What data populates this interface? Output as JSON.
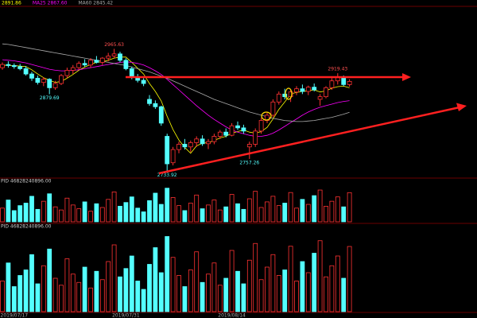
{
  "chart_data": {
    "type": "candlestick",
    "header": [
      {
        "text": "2891.86",
        "color": "#ffff00"
      },
      {
        "text": "MA25 2867.60",
        "color": "#ff00ff"
      },
      {
        "text": "MA60 2845.42",
        "color": "#aaaaaa"
      }
    ],
    "categories": [
      null,
      null,
      "2019/07/17",
      null,
      null,
      null,
      null,
      null,
      null,
      null,
      null,
      null,
      null,
      null,
      null,
      null,
      null,
      null,
      null,
      null,
      null,
      "2019/07/31",
      null,
      null,
      null,
      null,
      null,
      null,
      null,
      null,
      null,
      null,
      null,
      null,
      null,
      null,
      null,
      null,
      null,
      "2019/08/14",
      null,
      null,
      null,
      null,
      null,
      null,
      null,
      null,
      null,
      null,
      null,
      null,
      null,
      null,
      null,
      null,
      null,
      null,
      null,
      null
    ],
    "open": [
      2930,
      2936,
      2934,
      2932,
      2928,
      2918,
      2910,
      2902,
      2908,
      2892,
      2900,
      2915,
      2925,
      2930,
      2938,
      2935,
      2944,
      2940,
      2948,
      2952,
      2956,
      2944,
      2928,
      2912,
      2906,
      2870,
      2862,
      2856,
      2800,
      2750,
      2775,
      2785,
      2780,
      2788,
      2795,
      2786,
      2790,
      2800,
      2808,
      2802,
      2820,
      2816,
      2780,
      2785,
      2810,
      2830,
      2840,
      2865,
      2880,
      2875,
      2884,
      2890,
      2885,
      2893,
      2870,
      2875,
      2892,
      2905,
      2912,
      2898
    ],
    "high": [
      2940,
      2942,
      2938,
      2937,
      2933,
      2922,
      2915,
      2912,
      2910,
      2905,
      2918,
      2930,
      2935,
      2942,
      2946,
      2948,
      2952,
      2950,
      2958,
      2965.63,
      2960,
      2948,
      2932,
      2918,
      2910,
      2878,
      2868,
      2858,
      2805,
      2780,
      2790,
      2795,
      2792,
      2800,
      2802,
      2795,
      2805,
      2812,
      2815,
      2825,
      2828,
      2822,
      2790,
      2815,
      2835,
      2845,
      2870,
      2885,
      2890,
      2888,
      2895,
      2898,
      2896,
      2900,
      2880,
      2895,
      2910,
      2919.43,
      2915,
      2908
    ],
    "low": [
      2926,
      2930,
      2928,
      2925,
      2915,
      2905,
      2898,
      2895,
      2879.69,
      2888,
      2897,
      2910,
      2918,
      2926,
      2932,
      2930,
      2938,
      2935,
      2942,
      2948,
      2940,
      2925,
      2908,
      2902,
      2895,
      2858,
      2852,
      2820,
      2733.92,
      2745,
      2768,
      2775,
      2770,
      2780,
      2782,
      2776,
      2785,
      2795,
      2798,
      2800,
      2812,
      2805,
      2757.26,
      2780,
      2805,
      2825,
      2836,
      2860,
      2870,
      2865,
      2878,
      2880,
      2878,
      2885,
      2858,
      2872,
      2888,
      2898,
      2895,
      2894
    ],
    "close": [
      2936,
      2934,
      2932,
      2928,
      2918,
      2910,
      2902,
      2908,
      2892,
      2900,
      2915,
      2925,
      2930,
      2938,
      2935,
      2944,
      2940,
      2948,
      2952,
      2956,
      2944,
      2928,
      2912,
      2906,
      2900,
      2862,
      2856,
      2825,
      2748,
      2775,
      2785,
      2780,
      2788,
      2795,
      2786,
      2790,
      2800,
      2808,
      2802,
      2820,
      2816,
      2810,
      2785,
      2810,
      2830,
      2840,
      2865,
      2880,
      2875,
      2884,
      2890,
      2885,
      2893,
      2888,
      2875,
      2892,
      2905,
      2912,
      2898,
      2904
    ],
    "high_labels": [
      null,
      null,
      null,
      null,
      null,
      null,
      null,
      null,
      null,
      null,
      null,
      null,
      null,
      null,
      null,
      null,
      null,
      null,
      null,
      "2965.63",
      null,
      null,
      null,
      null,
      null,
      null,
      null,
      null,
      null,
      null,
      null,
      null,
      null,
      null,
      null,
      null,
      null,
      null,
      null,
      null,
      null,
      null,
      null,
      null,
      null,
      null,
      null,
      null,
      null,
      null,
      null,
      null,
      null,
      null,
      null,
      null,
      null,
      "2919.43",
      null,
      null
    ],
    "low_labels": [
      null,
      null,
      null,
      null,
      null,
      null,
      null,
      null,
      "2879.69",
      null,
      null,
      null,
      null,
      null,
      null,
      null,
      null,
      null,
      null,
      null,
      null,
      null,
      null,
      null,
      null,
      null,
      null,
      null,
      "2733.92",
      null,
      null,
      null,
      null,
      null,
      null,
      null,
      null,
      null,
      null,
      null,
      null,
      null,
      "2757.26",
      null,
      null,
      null,
      null,
      null,
      null,
      null,
      null,
      null,
      null,
      null,
      null,
      null,
      null,
      null,
      null,
      null
    ],
    "up_color": "#ff3232",
    "down_color": "#54ffff",
    "ylim": [
      2724,
      3046
    ],
    "series": [
      {
        "color": "#ffff00",
        "values": [
          2935,
          2934,
          2934,
          2933,
          2932,
          2926,
          2918,
          2911,
          2906,
          2902,
          2904,
          2910,
          2917,
          2925,
          2931,
          2936,
          2940,
          2941,
          2944,
          2948,
          2950,
          2950,
          2940,
          2929,
          2918,
          2900,
          2885,
          2867,
          2838,
          2813,
          2793,
          2779,
          2768,
          2782,
          2787,
          2788,
          2792,
          2797,
          2800,
          2806,
          2809,
          2812,
          2808,
          2806,
          2809,
          2817,
          2833,
          2851,
          2865,
          2880,
          2883,
          2885,
          2886,
          2888,
          2884,
          2886,
          2891,
          2894,
          2895,
          2891.86
        ]
      },
      {
        "color": "#ff00ff",
        "values": [
          2945,
          2944,
          2943,
          2941,
          2939,
          2936,
          2933,
          2930,
          2927,
          2925,
          2924,
          2924,
          2925,
          2926,
          2928,
          2930,
          2932,
          2934,
          2936,
          2938,
          2940,
          2941,
          2940,
          2938,
          2935,
          2930,
          2924,
          2917,
          2908,
          2898,
          2888,
          2878,
          2868,
          2858,
          2849,
          2840,
          2832,
          2825,
          2818,
          2812,
          2808,
          2805,
          2802,
          2800,
          2800,
          2802,
          2806,
          2812,
          2819,
          2826,
          2833,
          2840,
          2846,
          2851,
          2855,
          2858,
          2861,
          2864,
          2866,
          2867.6
        ]
      },
      {
        "color": "#aaaaaa",
        "values": [
          2975,
          2974,
          2972,
          2970,
          2968,
          2966,
          2964,
          2962,
          2960,
          2958,
          2956,
          2954,
          2952,
          2950,
          2948,
          2946,
          2944,
          2942,
          2940,
          2938,
          2936,
          2934,
          2931,
          2928,
          2925,
          2922,
          2918,
          2914,
          2910,
          2905,
          2900,
          2895,
          2890,
          2885,
          2880,
          2875,
          2870,
          2866,
          2862,
          2858,
          2854,
          2850,
          2846,
          2843,
          2840,
          2837,
          2834,
          2832,
          2830,
          2829,
          2828,
          2828,
          2829,
          2830,
          2832,
          2834,
          2836,
          2839,
          2842,
          2845.42
        ]
      }
    ],
    "volume": {
      "label": "PID 46828240896.00",
      "ylim": [
        0,
        60000000000.0
      ],
      "values": [
        22000000000.0,
        35000000000.0,
        18000000000.0,
        26000000000.0,
        30000000000.0,
        41000000000.0,
        20000000000.0,
        33000000000.0,
        45000000000.0,
        24000000000.0,
        19000000000.0,
        38000000000.0,
        27000000000.0,
        21000000000.0,
        32000000000.0,
        17000000000.0,
        29000000000.0,
        23000000000.0,
        36000000000.0,
        48000000000.0,
        25000000000.0,
        31000000000.0,
        40000000000.0,
        22000000000.0,
        16000000000.0,
        34000000000.0,
        46000000000.0,
        28000000000.0,
        54000000000.0,
        39000000000.0,
        26000000000.0,
        18000000000.0,
        30000000000.0,
        43000000000.0,
        21000000000.0,
        27000000000.0,
        35000000000.0,
        19000000000.0,
        24000000000.0,
        44000000000.0,
        29000000000.0,
        20000000000.0,
        37000000000.0,
        49000000000.0,
        23000000000.0,
        32000000000.0,
        41000000000.0,
        26000000000.0,
        30000000000.0,
        47000000000.0,
        22000000000.0,
        36000000000.0,
        28000000000.0,
        42000000000.0,
        51000000000.0,
        25000000000.0,
        33000000000.0,
        40000000000.0,
        24000000000.0,
        46828240896
      ]
    },
    "volume2": {
      "label": "PID 46828240896.00",
      "ylim": [
        0,
        60000000000.0
      ]
    }
  }
}
